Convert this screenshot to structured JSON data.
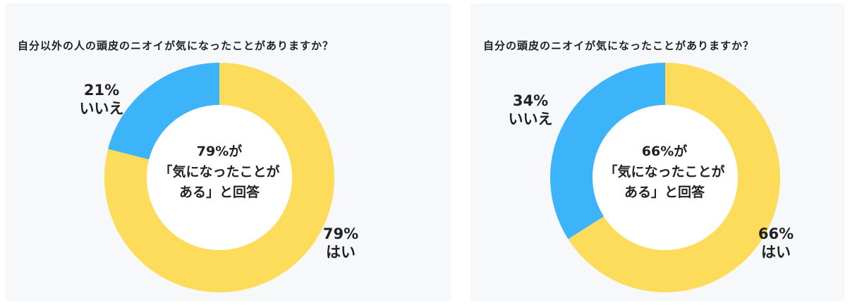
{
  "chart_data": [
    {
      "type": "pie",
      "title": "自分以外の人の頭皮のニオイが気になったことがありますか？",
      "center_text": [
        "79%が",
        "「気になったことが",
        "ある」と回答"
      ],
      "slices": [
        {
          "label": "はい",
          "value": 79,
          "value_label": "79%",
          "color": "#fddc5c"
        },
        {
          "label": "いいえ",
          "value": 21,
          "value_label": "21%",
          "color": "#3db3f9"
        }
      ]
    },
    {
      "type": "pie",
      "title": "自分の頭皮のニオイが気になったことがありますか？",
      "center_text": [
        "66%が",
        "「気になったことが",
        "ある」と回答"
      ],
      "slices": [
        {
          "label": "はい",
          "value": 66,
          "value_label": "66%",
          "color": "#fddc5c"
        },
        {
          "label": "いいえ",
          "value": 34,
          "value_label": "34%",
          "color": "#3db3f9"
        }
      ]
    }
  ]
}
